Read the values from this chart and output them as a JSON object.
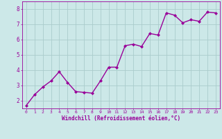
{
  "x": [
    0,
    1,
    2,
    3,
    4,
    5,
    6,
    7,
    8,
    9,
    10,
    11,
    12,
    13,
    14,
    15,
    16,
    17,
    18,
    19,
    20,
    21,
    22,
    23
  ],
  "y": [
    1.7,
    2.4,
    2.9,
    3.3,
    3.9,
    3.2,
    2.6,
    2.55,
    2.5,
    3.3,
    4.2,
    4.2,
    5.6,
    5.7,
    5.55,
    6.4,
    6.3,
    7.75,
    7.6,
    7.1,
    7.3,
    7.2,
    7.8,
    7.75
  ],
  "line_color": "#990099",
  "marker": "D",
  "marker_size": 2.0,
  "line_width": 1.0,
  "bg_color": "#cce8e8",
  "grid_color": "#aacccc",
  "xlabel": "Windchill (Refroidissement éolien,°C)",
  "xlabel_color": "#990099",
  "tick_color": "#990099",
  "ylim": [
    1.5,
    8.5
  ],
  "xlim": [
    -0.5,
    23.5
  ],
  "yticks": [
    2,
    3,
    4,
    5,
    6,
    7,
    8
  ],
  "xticks": [
    0,
    1,
    2,
    3,
    4,
    5,
    6,
    7,
    8,
    9,
    10,
    11,
    12,
    13,
    14,
    15,
    16,
    17,
    18,
    19,
    20,
    21,
    22,
    23
  ]
}
